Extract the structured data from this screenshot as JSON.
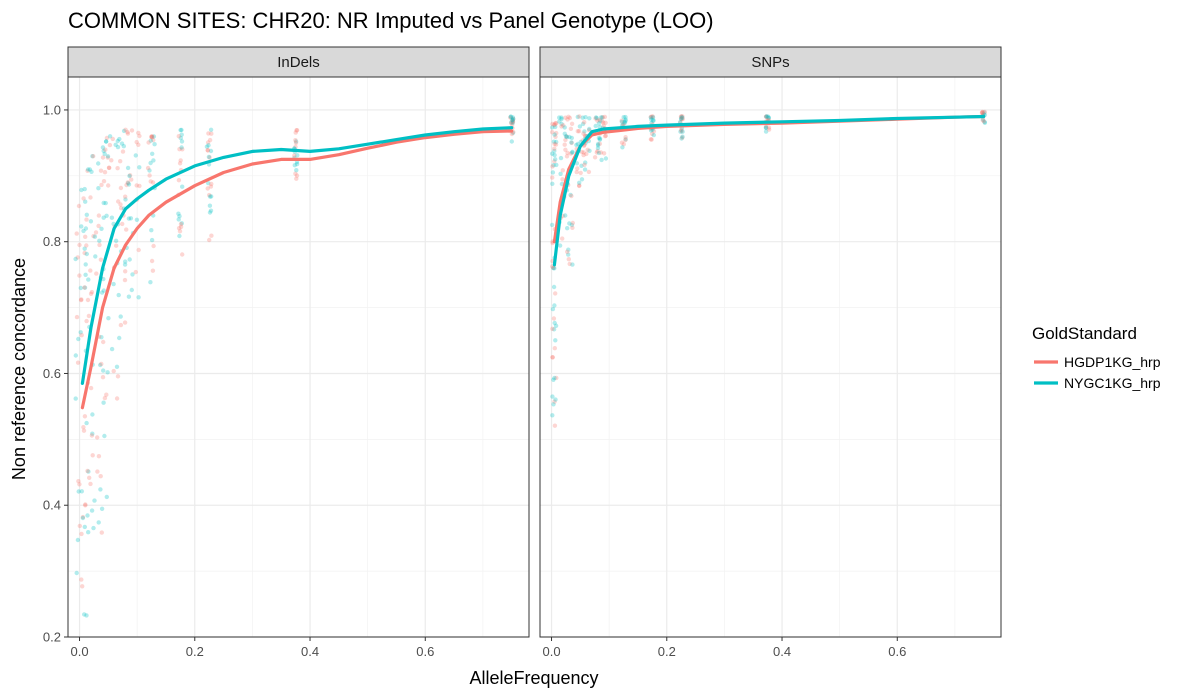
{
  "chart_data": {
    "type": "scatter",
    "title": "COMMON SITES: CHR20: NR Imputed vs Panel Genotype (LOO)",
    "xlabel": "AlleleFrequency",
    "ylabel": "Non reference concordance",
    "xlim": [
      -0.02,
      0.78
    ],
    "ylim": [
      0.2,
      1.05
    ],
    "x_ticks": [
      0.0,
      0.2,
      0.4,
      0.6
    ],
    "x_tick_labels": [
      "0.0",
      "0.2",
      "0.4",
      "0.6"
    ],
    "y_ticks": [
      0.2,
      0.4,
      0.6,
      0.8,
      1.0
    ],
    "y_tick_labels": [
      "0.2",
      "0.4",
      "0.6",
      "0.8",
      "1.0"
    ],
    "legend": {
      "title": "GoldStandard",
      "position": "right",
      "entries": [
        {
          "label": "HGDP1KG_hrp",
          "color": "#F8766D"
        },
        {
          "label": "NYGC1KG_hrp",
          "color": "#00BFC4"
        }
      ]
    },
    "panels": [
      {
        "label": "InDels",
        "series": [
          {
            "name": "HGDP1KG_hrp",
            "color": "#F8766D",
            "smooth": [
              [
                0.005,
                0.548
              ],
              [
                0.02,
                0.61
              ],
              [
                0.04,
                0.7
              ],
              [
                0.06,
                0.76
              ],
              [
                0.08,
                0.795
              ],
              [
                0.1,
                0.82
              ],
              [
                0.12,
                0.84
              ],
              [
                0.15,
                0.86
              ],
              [
                0.2,
                0.885
              ],
              [
                0.25,
                0.905
              ],
              [
                0.3,
                0.918
              ],
              [
                0.35,
                0.925
              ],
              [
                0.4,
                0.925
              ],
              [
                0.45,
                0.932
              ],
              [
                0.5,
                0.942
              ],
              [
                0.55,
                0.951
              ],
              [
                0.6,
                0.958
              ],
              [
                0.65,
                0.963
              ],
              [
                0.7,
                0.967
              ],
              [
                0.75,
                0.968
              ]
            ]
          },
          {
            "name": "NYGC1KG_hrp",
            "color": "#00BFC4",
            "smooth": [
              [
                0.005,
                0.585
              ],
              [
                0.02,
                0.67
              ],
              [
                0.04,
                0.76
              ],
              [
                0.06,
                0.82
              ],
              [
                0.08,
                0.85
              ],
              [
                0.1,
                0.865
              ],
              [
                0.12,
                0.878
              ],
              [
                0.15,
                0.895
              ],
              [
                0.2,
                0.915
              ],
              [
                0.25,
                0.928
              ],
              [
                0.3,
                0.937
              ],
              [
                0.35,
                0.94
              ],
              [
                0.4,
                0.937
              ],
              [
                0.45,
                0.941
              ],
              [
                0.5,
                0.948
              ],
              [
                0.55,
                0.955
              ],
              [
                0.6,
                0.962
              ],
              [
                0.65,
                0.967
              ],
              [
                0.7,
                0.971
              ],
              [
                0.75,
                0.973
              ]
            ]
          }
        ],
        "point_clusters": [
          {
            "x": 0.005,
            "spread": 0.012,
            "ymin": 0.23,
            "ymax": 0.88,
            "n": 60
          },
          {
            "x": 0.03,
            "spread": 0.02,
            "ymin": 0.35,
            "ymax": 0.93,
            "n": 70
          },
          {
            "x": 0.06,
            "spread": 0.02,
            "ymin": 0.55,
            "ymax": 0.96,
            "n": 60
          },
          {
            "x": 0.09,
            "spread": 0.015,
            "ymin": 0.7,
            "ymax": 0.97,
            "n": 40
          },
          {
            "x": 0.125,
            "spread": 0.006,
            "ymin": 0.73,
            "ymax": 0.96,
            "n": 25
          },
          {
            "x": 0.175,
            "spread": 0.004,
            "ymin": 0.78,
            "ymax": 0.97,
            "n": 25
          },
          {
            "x": 0.225,
            "spread": 0.004,
            "ymin": 0.8,
            "ymax": 0.97,
            "n": 25
          },
          {
            "x": 0.375,
            "spread": 0.003,
            "ymin": 0.89,
            "ymax": 0.97,
            "n": 20
          },
          {
            "x": 0.75,
            "spread": 0.003,
            "ymin": 0.95,
            "ymax": 0.99,
            "n": 20
          }
        ]
      },
      {
        "label": "SNPs",
        "series": [
          {
            "name": "HGDP1KG_hrp",
            "color": "#F8766D",
            "smooth": [
              [
                0.005,
                0.8
              ],
              [
                0.015,
                0.86
              ],
              [
                0.03,
                0.91
              ],
              [
                0.05,
                0.945
              ],
              [
                0.07,
                0.962
              ],
              [
                0.09,
                0.966
              ],
              [
                0.12,
                0.969
              ],
              [
                0.15,
                0.972
              ],
              [
                0.2,
                0.975
              ],
              [
                0.3,
                0.978
              ],
              [
                0.4,
                0.98
              ],
              [
                0.5,
                0.983
              ],
              [
                0.6,
                0.986
              ],
              [
                0.7,
                0.989
              ],
              [
                0.75,
                0.99
              ]
            ]
          },
          {
            "name": "NYGC1KG_hrp",
            "color": "#00BFC4",
            "smooth": [
              [
                0.005,
                0.765
              ],
              [
                0.015,
                0.84
              ],
              [
                0.03,
                0.9
              ],
              [
                0.05,
                0.945
              ],
              [
                0.07,
                0.967
              ],
              [
                0.09,
                0.971
              ],
              [
                0.12,
                0.973
              ],
              [
                0.15,
                0.975
              ],
              [
                0.2,
                0.977
              ],
              [
                0.3,
                0.98
              ],
              [
                0.4,
                0.982
              ],
              [
                0.5,
                0.984
              ],
              [
                0.6,
                0.987
              ],
              [
                0.7,
                0.989
              ],
              [
                0.75,
                0.99
              ]
            ]
          }
        ],
        "point_clusters": [
          {
            "x": 0.005,
            "spread": 0.004,
            "ymin": 0.47,
            "ymax": 0.98,
            "n": 60
          },
          {
            "x": 0.025,
            "spread": 0.012,
            "ymin": 0.75,
            "ymax": 0.99,
            "n": 60
          },
          {
            "x": 0.055,
            "spread": 0.012,
            "ymin": 0.88,
            "ymax": 0.99,
            "n": 50
          },
          {
            "x": 0.085,
            "spread": 0.01,
            "ymin": 0.92,
            "ymax": 0.99,
            "n": 40
          },
          {
            "x": 0.125,
            "spread": 0.004,
            "ymin": 0.94,
            "ymax": 0.99,
            "n": 20
          },
          {
            "x": 0.175,
            "spread": 0.003,
            "ymin": 0.95,
            "ymax": 0.99,
            "n": 20
          },
          {
            "x": 0.225,
            "spread": 0.003,
            "ymin": 0.955,
            "ymax": 0.99,
            "n": 20
          },
          {
            "x": 0.375,
            "spread": 0.003,
            "ymin": 0.965,
            "ymax": 0.99,
            "n": 20
          },
          {
            "x": 0.75,
            "spread": 0.003,
            "ymin": 0.98,
            "ymax": 0.997,
            "n": 15
          }
        ]
      }
    ]
  }
}
